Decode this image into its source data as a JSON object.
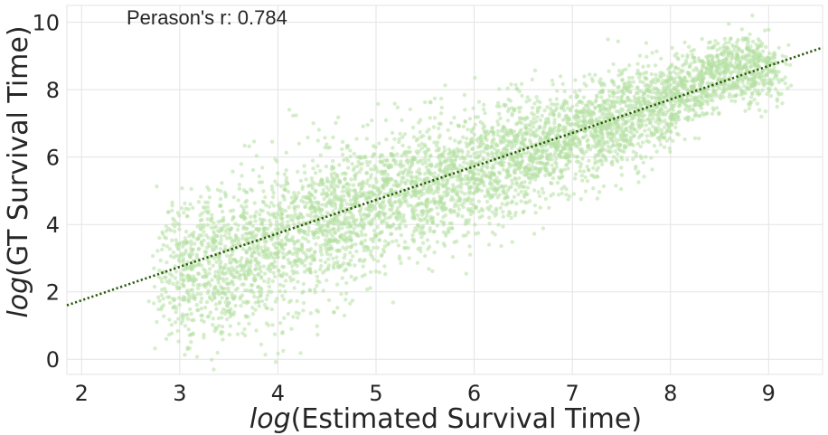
{
  "chart_data": {
    "type": "scatter",
    "xlabel_prefix": "log",
    "xlabel_rest": "(Estimated Survival Time)",
    "ylabel_prefix": "log",
    "ylabel_rest": "(GT Survival Time)",
    "annotation": "Perason's r: 0.784",
    "xlim": [
      1.85,
      9.55
    ],
    "ylim": [
      -0.45,
      10.5
    ],
    "x_ticks": [
      2,
      3,
      4,
      5,
      6,
      7,
      8,
      9
    ],
    "y_ticks": [
      0,
      2,
      4,
      6,
      8,
      10
    ],
    "x_tick_labels": [
      "2",
      "3",
      "4",
      "5",
      "6",
      "7",
      "8",
      "9"
    ],
    "y_tick_labels": [
      "0",
      "2",
      "4",
      "6",
      "8",
      "10"
    ],
    "grid": true,
    "point_color": "#b5e0a2",
    "trendline": {
      "style": "dotted",
      "color": "#2d5a0c",
      "points": [
        [
          1.85,
          1.6
        ],
        [
          9.55,
          9.25
        ]
      ]
    },
    "density_profile": {
      "x": [
        3.0,
        4.0,
        5.0,
        6.0,
        7.0,
        8.0,
        8.6
      ],
      "y_center": [
        2.5,
        3.5,
        4.7,
        5.6,
        6.6,
        7.7,
        8.6
      ],
      "y_spread": [
        1.1,
        1.1,
        1.0,
        0.9,
        0.75,
        0.65,
        0.5
      ]
    }
  }
}
